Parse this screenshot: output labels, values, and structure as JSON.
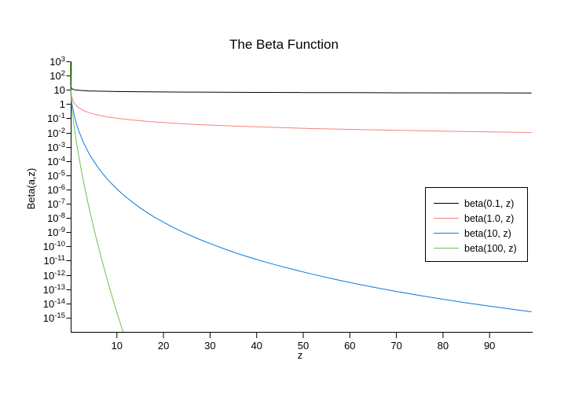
{
  "chart_data": {
    "type": "line",
    "title": "The Beta Function",
    "xlabel": "z",
    "ylabel": "Beta(a,z)",
    "grid": false,
    "x_axis": {
      "min": 0,
      "max": 99.3,
      "ticks": [
        10,
        20,
        30,
        40,
        50,
        60,
        70,
        80,
        90
      ]
    },
    "y_axis": {
      "scale": "log10",
      "top_exponent": 3,
      "bottom_exponent": -16,
      "tick_labels": [
        {
          "base": "10",
          "exp": "3"
        },
        {
          "base": "10",
          "exp": "2"
        },
        {
          "base": "10",
          "exp": ""
        },
        {
          "base": "1",
          "exp": ""
        },
        {
          "base": "10",
          "exp": "-1"
        },
        {
          "base": "10",
          "exp": "-2"
        },
        {
          "base": "10",
          "exp": "-3"
        },
        {
          "base": "10",
          "exp": "-4"
        },
        {
          "base": "10",
          "exp": "-5"
        },
        {
          "base": "10",
          "exp": "-6"
        },
        {
          "base": "10",
          "exp": "-7"
        },
        {
          "base": "10",
          "exp": "-8"
        },
        {
          "base": "10",
          "exp": "-9"
        },
        {
          "base": "10",
          "exp": "-10"
        },
        {
          "base": "10",
          "exp": "-11"
        },
        {
          "base": "10",
          "exp": "-12"
        },
        {
          "base": "10",
          "exp": "-13"
        },
        {
          "base": "10",
          "exp": "-14"
        },
        {
          "base": "10",
          "exp": "-15"
        }
      ]
    },
    "legend": {
      "position": "middle-right",
      "border": true
    },
    "series": [
      {
        "name": "beta(0.1, z)",
        "a": 0.1,
        "color": "#000000",
        "points_log10": [
          [
            0.001,
            3
          ],
          [
            0.002,
            2.7
          ],
          [
            0.004,
            2.4
          ],
          [
            0.008,
            2.11
          ],
          [
            0.015,
            1.85
          ],
          [
            0.03,
            1.57
          ],
          [
            0.06,
            1.38
          ],
          [
            0.1,
            1.29
          ],
          [
            0.15,
            1.23
          ],
          [
            0.22,
            1.16
          ],
          [
            0.35,
            1.09
          ],
          [
            0.5,
            1.05
          ],
          [
            0.7,
            1.02
          ],
          [
            1,
            1
          ],
          [
            1.5,
            0.98
          ],
          [
            2,
            0.96
          ],
          [
            3,
            0.94
          ],
          [
            4,
            0.92
          ],
          [
            5,
            0.91
          ],
          [
            7,
            0.9
          ],
          [
            10,
            0.88
          ],
          [
            14,
            0.87
          ],
          [
            19,
            0.85
          ],
          [
            25,
            0.84
          ],
          [
            32,
            0.83
          ],
          [
            40,
            0.82
          ],
          [
            50,
            0.81
          ],
          [
            60,
            0.8
          ],
          [
            70,
            0.79
          ],
          [
            84,
            0.785
          ],
          [
            99,
            0.78
          ]
        ]
      },
      {
        "name": "beta(1.0, z)",
        "a": 1.0,
        "color": "#f4827e",
        "points_log10": [
          [
            0.001,
            3
          ],
          [
            0.003,
            2.52
          ],
          [
            0.01,
            2
          ],
          [
            0.03,
            1.52
          ],
          [
            0.1,
            1
          ],
          [
            0.2,
            0.7
          ],
          [
            0.35,
            0.46
          ],
          [
            0.5,
            0.3
          ],
          [
            0.7,
            0.15
          ],
          [
            1,
            0
          ],
          [
            1.4,
            -0.15
          ],
          [
            2,
            -0.3
          ],
          [
            2.8,
            -0.45
          ],
          [
            4,
            -0.6
          ],
          [
            5.5,
            -0.74
          ],
          [
            7.5,
            -0.88
          ],
          [
            10,
            -1
          ],
          [
            13,
            -1.11
          ],
          [
            17,
            -1.23
          ],
          [
            22,
            -1.34
          ],
          [
            28,
            -1.45
          ],
          [
            35,
            -1.54
          ],
          [
            43,
            -1.63
          ],
          [
            52,
            -1.72
          ],
          [
            62,
            -1.79
          ],
          [
            73,
            -1.86
          ],
          [
            85,
            -1.93
          ],
          [
            99,
            -2
          ]
        ]
      },
      {
        "name": "beta(10, z)",
        "a": 10,
        "color": "#0d79e0",
        "points_log10": [
          [
            0.001,
            3
          ],
          [
            0.002,
            2.7
          ],
          [
            0.004,
            2.39
          ],
          [
            0.008,
            2.08
          ],
          [
            0.015,
            1.8
          ],
          [
            0.03,
            1.5
          ],
          [
            0.06,
            1.17
          ],
          [
            0.1,
            0.88
          ],
          [
            0.15,
            0.63
          ],
          [
            0.2,
            0.47
          ],
          [
            0.3,
            0.18
          ],
          [
            0.4,
            -0.05
          ],
          [
            0.5,
            -0.25
          ],
          [
            0.7,
            -0.58
          ],
          [
            1,
            -1
          ],
          [
            1.3,
            -1.37
          ],
          [
            1.7,
            -1.78
          ],
          [
            2,
            -2.04
          ],
          [
            2.5,
            -2.45
          ],
          [
            3,
            -2.82
          ],
          [
            3.5,
            -3.15
          ],
          [
            4,
            -3.46
          ],
          [
            4.5,
            -3.74
          ],
          [
            5,
            -4
          ],
          [
            6,
            -4.48
          ],
          [
            7,
            -4.9
          ],
          [
            8,
            -5.29
          ],
          [
            9,
            -5.64
          ],
          [
            10,
            -5.97
          ],
          [
            11,
            -6.27
          ],
          [
            12,
            -6.55
          ],
          [
            13.5,
            -6.93
          ],
          [
            15,
            -7.29
          ],
          [
            16.5,
            -7.62
          ],
          [
            18,
            -7.93
          ],
          [
            20,
            -8.3
          ],
          [
            22,
            -8.65
          ],
          [
            24,
            -8.97
          ],
          [
            26,
            -9.26
          ],
          [
            28,
            -9.54
          ],
          [
            30,
            -9.8
          ],
          [
            33,
            -10.17
          ],
          [
            36,
            -10.51
          ],
          [
            40,
            -10.92
          ],
          [
            44,
            -11.29
          ],
          [
            48,
            -11.63
          ],
          [
            52,
            -11.95
          ],
          [
            56,
            -12.25
          ],
          [
            60,
            -12.53
          ],
          [
            65,
            -12.86
          ],
          [
            70,
            -13.16
          ],
          [
            75,
            -13.44
          ],
          [
            80,
            -13.71
          ],
          [
            85,
            -13.96
          ],
          [
            90,
            -14.19
          ],
          [
            95,
            -14.42
          ],
          [
            99,
            -14.59
          ]
        ]
      },
      {
        "name": "beta(100, z)",
        "a": 100,
        "color": "#6cc24a",
        "points_log10": [
          [
            0.001,
            3
          ],
          [
            0.002,
            2.69
          ],
          [
            0.004,
            2.38
          ],
          [
            0.008,
            2.07
          ],
          [
            0.015,
            1.78
          ],
          [
            0.03,
            1.46
          ],
          [
            0.06,
            1.1
          ],
          [
            0.1,
            0.78
          ],
          [
            0.15,
            0.5
          ],
          [
            0.2,
            0.26
          ],
          [
            0.3,
            -0.12
          ],
          [
            0.4,
            -0.45
          ],
          [
            0.5,
            -0.75
          ],
          [
            0.7,
            -1.29
          ],
          [
            0.85,
            -1.66
          ],
          [
            1,
            -2
          ],
          [
            1.25,
            -2.54
          ],
          [
            1.5,
            -3.06
          ],
          [
            1.75,
            -3.54
          ],
          [
            2,
            -4
          ],
          [
            2.25,
            -4.45
          ],
          [
            2.5,
            -4.89
          ],
          [
            2.75,
            -5.31
          ],
          [
            3,
            -5.71
          ],
          [
            3.25,
            -6.11
          ],
          [
            3.5,
            -6.5
          ],
          [
            3.75,
            -6.88
          ],
          [
            4,
            -7.25
          ],
          [
            4.25,
            -7.61
          ],
          [
            4.5,
            -7.96
          ],
          [
            4.75,
            -8.31
          ],
          [
            5,
            -8.66
          ],
          [
            5.5,
            -9.33
          ],
          [
            6,
            -9.98
          ],
          [
            6.5,
            -10.61
          ],
          [
            7,
            -11.23
          ],
          [
            7.5,
            -11.83
          ],
          [
            8,
            -12.42
          ],
          [
            8.5,
            -12.99
          ],
          [
            9,
            -13.55
          ],
          [
            9.5,
            -14.09
          ],
          [
            10,
            -14.63
          ],
          [
            10.5,
            -15.15
          ],
          [
            11,
            -15.67
          ],
          [
            11.4,
            -16.05
          ]
        ]
      }
    ]
  },
  "colors": {
    "background": "#ffffff",
    "axis": "#000000",
    "text": "#000000"
  }
}
